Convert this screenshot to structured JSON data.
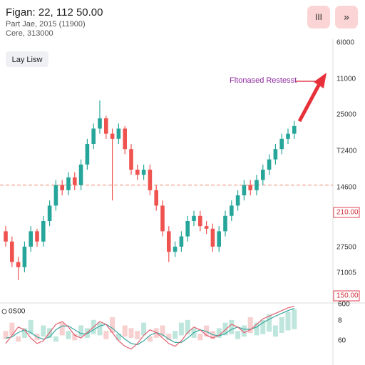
{
  "header": {
    "title": "Figan: 22, 112 50.00",
    "line2": "Part Jae, 2015 (11900)",
    "line3": "Cere, 313000",
    "buttons": [
      "III",
      "»"
    ]
  },
  "view_button": "Lay Lisw",
  "chart_data": {
    "type": "candlestick",
    "open": [
      26,
      22,
      14,
      12,
      20,
      26,
      22,
      30,
      36,
      44,
      42,
      47,
      44,
      52,
      60,
      66,
      70,
      64,
      62,
      66,
      58,
      50,
      48,
      50,
      42,
      36,
      26,
      18,
      20,
      24,
      30,
      32,
      28,
      27,
      20,
      26,
      32,
      36,
      40,
      44,
      42,
      46,
      50,
      54,
      58,
      62,
      64
    ],
    "high": [
      28,
      24,
      16,
      22,
      28,
      27,
      32,
      38,
      46,
      46,
      49,
      49,
      54,
      62,
      68,
      77,
      71,
      66,
      68,
      67,
      60,
      52,
      52,
      52,
      44,
      38,
      28,
      22,
      26,
      32,
      34,
      34,
      30,
      29,
      28,
      34,
      38,
      42,
      46,
      46,
      48,
      52,
      56,
      60,
      64,
      66,
      69
    ],
    "low": [
      20,
      12,
      7,
      10,
      18,
      20,
      20,
      28,
      34,
      40,
      40,
      42,
      42,
      50,
      58,
      64,
      62,
      38,
      60,
      56,
      48,
      46,
      46,
      40,
      34,
      24,
      14,
      16,
      18,
      22,
      28,
      26,
      25,
      18,
      18,
      24,
      30,
      34,
      38,
      40,
      40,
      44,
      48,
      52,
      56,
      60,
      62
    ],
    "close": [
      22,
      14,
      12,
      20,
      26,
      22,
      30,
      36,
      44,
      42,
      47,
      44,
      52,
      60,
      66,
      70,
      64,
      62,
      66,
      58,
      50,
      48,
      50,
      42,
      36,
      26,
      18,
      20,
      24,
      30,
      32,
      28,
      27,
      20,
      26,
      32,
      36,
      40,
      44,
      42,
      46,
      50,
      54,
      58,
      62,
      64,
      67
    ],
    "up_color": "#26a69a",
    "down_color": "#ef5350",
    "ylim": [
      0,
      100
    ],
    "level": 44,
    "level_color": "#f0a08a",
    "annotation": "Fltonased Restesst",
    "price_labels": [
      {
        "text": "6I000",
        "highlight": false
      },
      {
        "text": "11000",
        "highlight": false
      },
      {
        "text": "25000",
        "highlight": false
      },
      {
        "text": "T2400",
        "highlight": false
      },
      {
        "text": "14600",
        "highlight": false
      },
      {
        "text": "210.00",
        "highlight": true
      },
      {
        "text": "27500",
        "highlight": false
      },
      {
        "text": "71005",
        "highlight": false
      },
      {
        "text": "150.00",
        "highlight": true
      }
    ],
    "indicator": {
      "label": "0S00",
      "right_labels": [
        "600",
        "8",
        "60"
      ],
      "ylim": [
        0,
        100
      ],
      "volume": [
        40,
        55,
        30,
        45,
        60,
        35,
        50,
        45,
        30,
        55,
        40,
        35,
        50,
        45,
        60,
        55,
        40,
        65,
        35,
        50,
        45,
        40,
        55,
        30,
        45,
        50,
        35,
        40,
        55,
        60,
        45,
        35,
        50,
        40,
        45,
        55,
        60,
        40,
        50,
        65,
        55,
        60,
        70,
        50,
        65,
        75,
        80
      ],
      "fast": [
        30,
        45,
        60,
        55,
        40,
        30,
        35,
        50,
        65,
        70,
        60,
        45,
        40,
        50,
        60,
        70,
        65,
        50,
        35,
        25,
        20,
        30,
        45,
        55,
        50,
        40,
        30,
        25,
        35,
        50,
        60,
        55,
        45,
        40,
        45,
        55,
        65,
        60,
        50,
        55,
        65,
        75,
        80,
        85,
        90,
        95,
        98
      ],
      "slow": [
        40,
        42,
        50,
        55,
        50,
        42,
        38,
        42,
        55,
        62,
        62,
        55,
        48,
        48,
        55,
        62,
        65,
        58,
        48,
        38,
        30,
        28,
        35,
        45,
        50,
        46,
        38,
        32,
        32,
        40,
        50,
        55,
        52,
        46,
        44,
        48,
        56,
        60,
        56,
        56,
        60,
        68,
        74,
        80,
        85,
        90,
        94
      ],
      "fast_color": "#e06070",
      "slow_color": "#3aa6a0"
    }
  }
}
